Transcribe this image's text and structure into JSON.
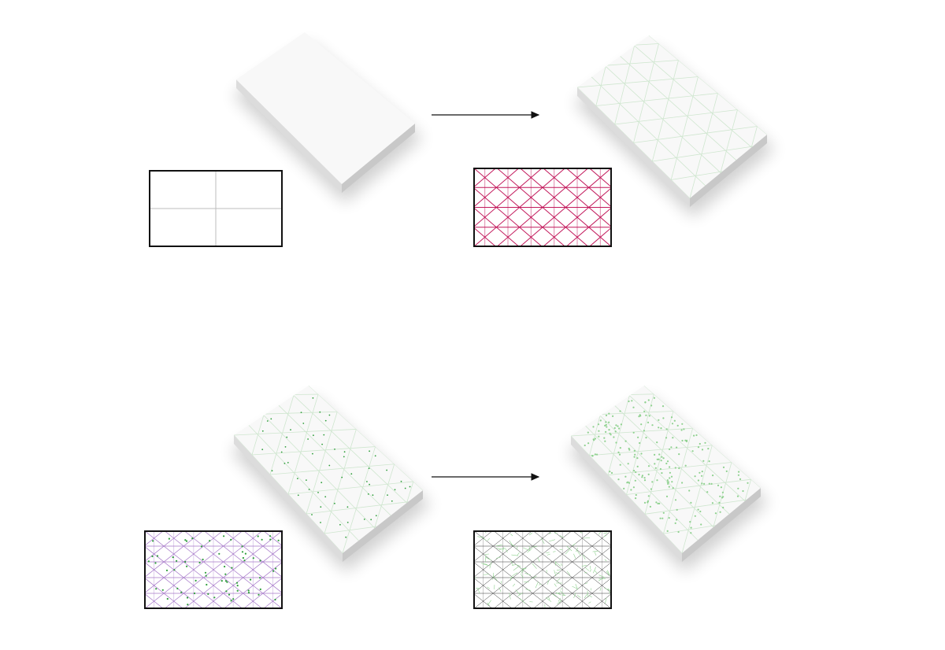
{
  "diagram": {
    "title": "",
    "colors": {
      "background": "#ffffff",
      "slab_top": "#f8f8f8",
      "slab_side_light": "#dcdcdc",
      "slab_side_dark": "#c8c8c8",
      "shadow": "#000000",
      "frame": "#111111",
      "plain_grid": "#bdbdbd",
      "triangle_grid_red": "#c2185b",
      "triangle_grid_purple": "#a678c9",
      "triangle_grid_dark": "#333333",
      "green_detail": "#2e9e3a",
      "green_light": "#8fd18f",
      "slab_grid_light": "#cfe6cf",
      "arrow": "#111111"
    },
    "rows": [
      {
        "id": "row-1",
        "input_slab": "plain",
        "input_pattern": "rectangular-2x2",
        "output_slab": "triangulated",
        "output_pattern": "triangular-red"
      },
      {
        "id": "row-2",
        "input_slab": "triangulated-with-points",
        "input_pattern": "triangular-purple-with-points",
        "output_slab": "subdivided-green",
        "output_pattern": "subdivided-dark-green"
      }
    ],
    "arrow_icon": "right-arrow-icon"
  }
}
